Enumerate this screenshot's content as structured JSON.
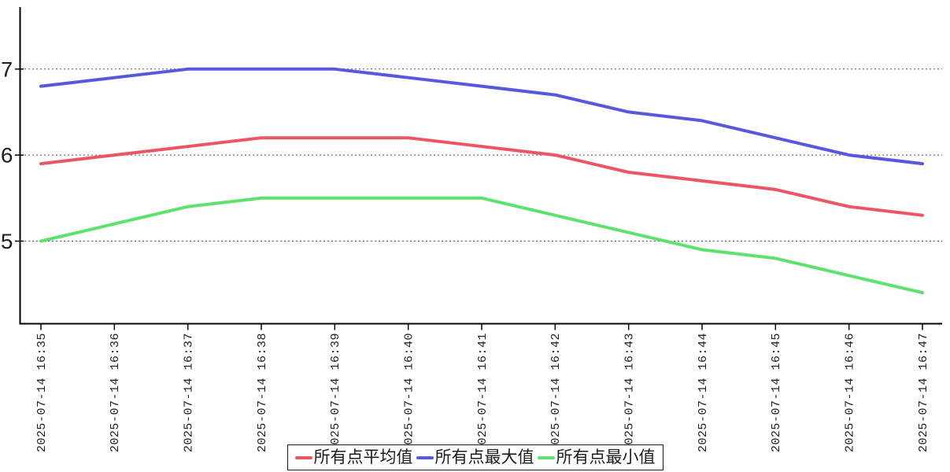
{
  "chart_data": {
    "type": "line",
    "title": "",
    "xlabel": "",
    "ylabel": "",
    "x_labels": [
      "2025-07-14 16:35",
      "2025-07-14 16:36",
      "2025-07-14 16:37",
      "2025-07-14 16:38",
      "2025-07-14 16:39",
      "2025-07-14 16:40",
      "2025-07-14 16:41",
      "2025-07-14 16:42",
      "2025-07-14 16:43",
      "2025-07-14 16:44",
      "2025-07-14 16:45",
      "2025-07-14 16:46",
      "2025-07-14 16:47"
    ],
    "y_ticks": [
      5,
      6,
      7
    ],
    "ylim": [
      4.04,
      7.72
    ],
    "grid": "horizontal-dotted",
    "legend_position": "bottom-center",
    "series": [
      {
        "name": "所有点平均值",
        "color": "#ed5565",
        "values": [
          5.9,
          6.0,
          6.1,
          6.2,
          6.2,
          6.2,
          6.1,
          6.0,
          5.8,
          5.7,
          5.6,
          5.4,
          5.3
        ]
      },
      {
        "name": "所有点最大值",
        "color": "#5659dd",
        "values": [
          6.8,
          6.9,
          7.0,
          7.0,
          7.0,
          6.9,
          6.8,
          6.7,
          6.5,
          6.4,
          6.2,
          6.0,
          5.9
        ]
      },
      {
        "name": "所有点最小值",
        "color": "#5ee26f",
        "values": [
          5.0,
          5.2,
          5.4,
          5.5,
          5.5,
          5.5,
          5.5,
          5.3,
          5.1,
          4.9,
          4.8,
          4.6,
          4.4
        ]
      }
    ]
  },
  "colors": {
    "axis": "#000000",
    "grid": "#555555",
    "tick_label": "#1f1f1f"
  }
}
